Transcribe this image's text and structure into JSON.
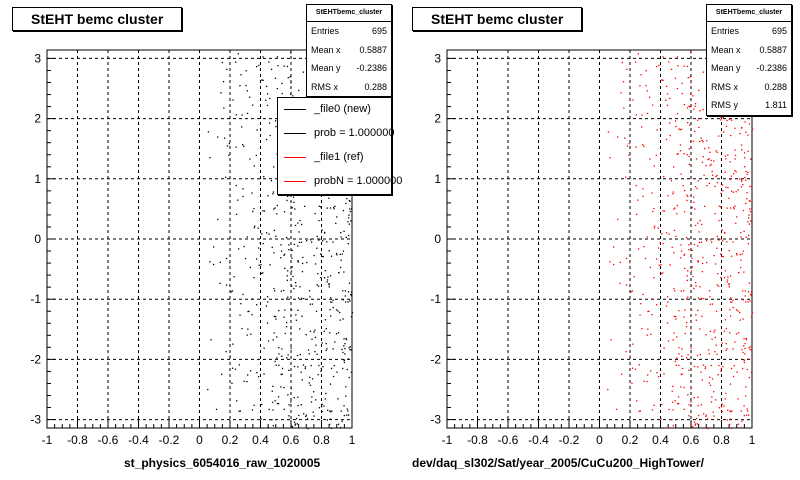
{
  "chart_data": [
    {
      "type": "scatter",
      "title": "StEHT bemc cluster",
      "xlabel": "st_physics_6054016_raw_1020005",
      "ylabel": "",
      "xlim": [
        -1,
        1
      ],
      "ylim": [
        -3.14,
        3.14
      ],
      "grid": true,
      "x_ticks": [
        "-1",
        "-0.8",
        "-0.6",
        "-0.4",
        "-0.2",
        "0",
        "0.2",
        "0.4",
        "0.6",
        "0.8",
        "1"
      ],
      "y_ticks": [
        "-3",
        "-2",
        "-1",
        "0",
        "1",
        "2",
        "3"
      ],
      "marker_color": "#000000",
      "point_x_range": [
        0.0,
        1.0
      ],
      "point_count": 695,
      "stats": {
        "title": "StEHTbemc_cluster",
        "rows": [
          {
            "label": "Entries",
            "value": "695"
          },
          {
            "label": "Mean x",
            "value": "0.5887"
          },
          {
            "label": "Mean y",
            "value": "-0.2386"
          },
          {
            "label": "RMS x",
            "value": "0.288"
          }
        ]
      },
      "legend": {
        "placement": "top-right",
        "entries": [
          {
            "label": "_file0 (new)",
            "color": "#000000"
          },
          {
            "label": "prob = 1.000000",
            "color": "#000000"
          },
          {
            "label": "_file1 (ref)",
            "color": "#ff0000"
          },
          {
            "label": "probN = 1.000000",
            "color": "#ff0000"
          }
        ]
      }
    },
    {
      "type": "scatter",
      "title": "StEHT bemc cluster",
      "xlabel": "dev/daq_sl302/Sat/year_2005/CuCu200_HighTower/",
      "ylabel": "",
      "xlim": [
        -1,
        1
      ],
      "ylim": [
        -3.14,
        3.14
      ],
      "grid": true,
      "x_ticks": [
        "-1",
        "-0.8",
        "-0.6",
        "-0.4",
        "-0.2",
        "0",
        "0.2",
        "0.4",
        "0.6",
        "0.8",
        "1"
      ],
      "y_ticks": [
        "-3",
        "-2",
        "-1",
        "0",
        "1",
        "2",
        "3"
      ],
      "marker_color": "#ff0000",
      "point_x_range": [
        0.0,
        1.0
      ],
      "point_count": 695,
      "stats": {
        "title": "StEHTbemc_cluster",
        "rows": [
          {
            "label": "Entries",
            "value": "695"
          },
          {
            "label": "Mean x",
            "value": "0.5887"
          },
          {
            "label": "Mean y",
            "value": "-0.2386"
          },
          {
            "label": "RMS x",
            "value": "0.288"
          },
          {
            "label": "RMS y",
            "value": "1.811"
          }
        ]
      }
    }
  ]
}
